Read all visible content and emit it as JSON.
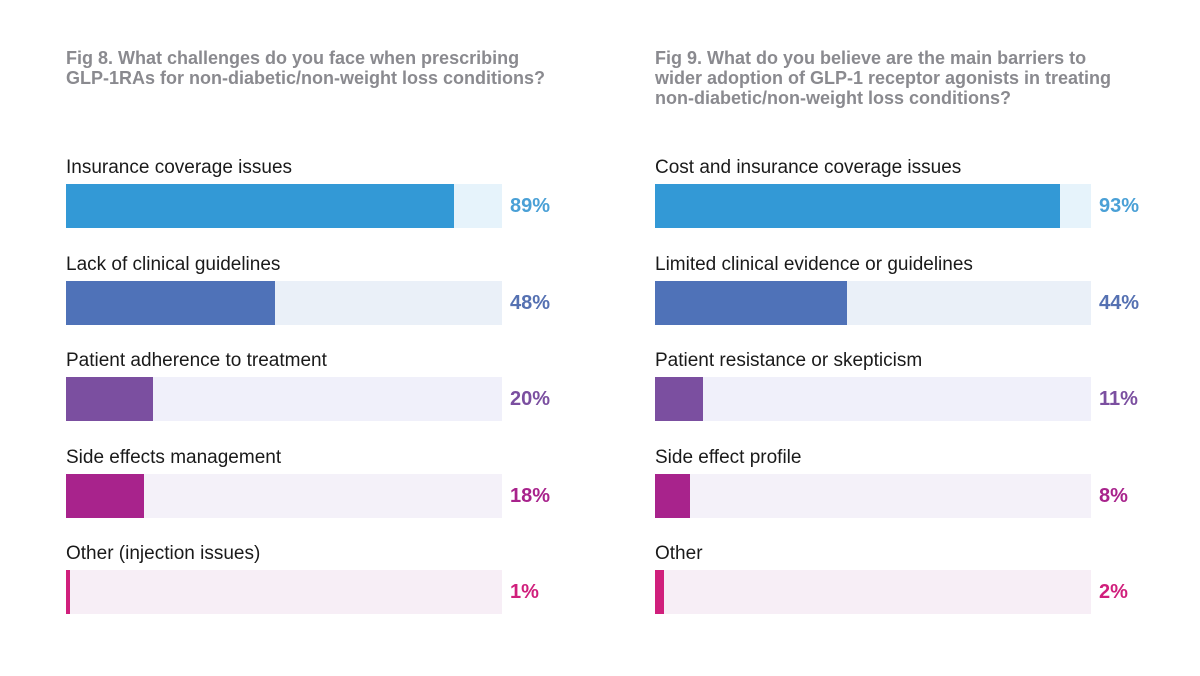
{
  "chart_data": [
    {
      "type": "bar",
      "orientation": "horizontal",
      "title": "Fig 8. What challenges do you face when prescribing\nGLP-1RAs for non-diabetic/non-weight loss conditions?",
      "categories": [
        "Insurance coverage issues",
        "Lack of clinical guidelines",
        "Patient adherence to treatment",
        "Side effects management",
        "Other (injection issues)"
      ],
      "values": [
        89,
        48,
        20,
        18,
        1
      ],
      "value_labels": [
        "89%",
        "48%",
        "20%",
        "18%",
        "1%"
      ],
      "xlim": [
        0,
        100
      ],
      "unit": "%"
    },
    {
      "type": "bar",
      "orientation": "horizontal",
      "title": "Fig 9. What do you believe are the main barriers to\nwider adoption of GLP-1 receptor agonists in treating\nnon-diabetic/non-weight loss conditions?",
      "categories": [
        "Cost and insurance coverage issues",
        "Limited clinical evidence or guidelines",
        "Patient resistance or skepticism",
        "Side effect profile",
        "Other"
      ],
      "values": [
        93,
        44,
        11,
        8,
        2
      ],
      "value_labels": [
        "93%",
        "44%",
        "11%",
        "8%",
        "2%"
      ],
      "xlim": [
        0,
        100
      ],
      "unit": "%"
    }
  ],
  "colors": {
    "title": "#8a8a8f",
    "bars": [
      "#3399d6",
      "#4f72b8",
      "#7b4fa0",
      "#a8238c",
      "#d01f7c"
    ],
    "tracks": [
      "#e6f3fb",
      "#eaf0f8",
      "#f0f0fa",
      "#f4f1f9",
      "#f7eef6"
    ],
    "labels": [
      "#4aa0d6",
      "#5571b2",
      "#7b4fa0",
      "#a8238c",
      "#d01f7c"
    ]
  }
}
